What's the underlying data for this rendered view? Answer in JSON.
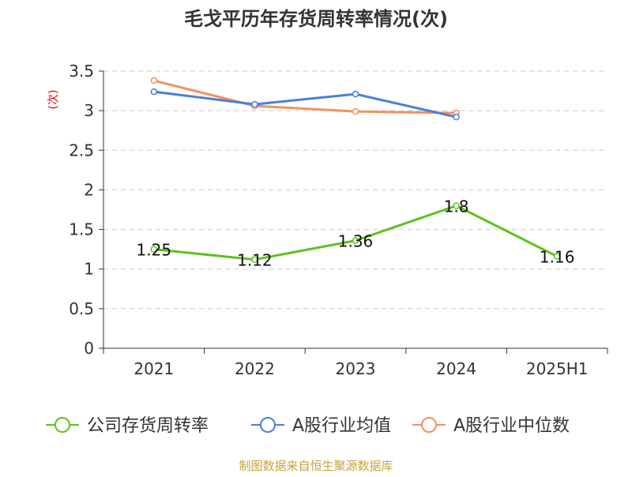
{
  "chart_data": {
    "type": "line",
    "title": "毛戈平历年存货周转率情况(次)",
    "ylabel": "(次)",
    "xlabel": "",
    "categories": [
      "2021",
      "2022",
      "2023",
      "2024",
      "2025H1"
    ],
    "ylim": [
      0,
      3.5
    ],
    "yticks": [
      0,
      0.5,
      1,
      1.5,
      2,
      2.5,
      3,
      3.5
    ],
    "grid": true,
    "legend_position": "bottom",
    "series": [
      {
        "name": "公司存货周转率",
        "color": "#5cc21f",
        "values": [
          1.25,
          1.12,
          1.36,
          1.8,
          1.16
        ],
        "labels": [
          "1.25",
          "1.12",
          "1.36",
          "1.8",
          "1.16"
        ]
      },
      {
        "name": "A股行业均值",
        "color": "#4a7fdc",
        "values": [
          3.24,
          3.08,
          3.21,
          2.92,
          null
        ]
      },
      {
        "name": "A股行业中位数",
        "color": "#f59060",
        "values": [
          3.38,
          3.06,
          2.99,
          2.97,
          null
        ]
      }
    ],
    "source": "制图数据来自恒生聚源数据库"
  },
  "colors": {
    "title": "#333333",
    "axis": "#333333",
    "grid": "#cccccc",
    "ylabel": "#dd0000",
    "source": "#c8a13a"
  }
}
